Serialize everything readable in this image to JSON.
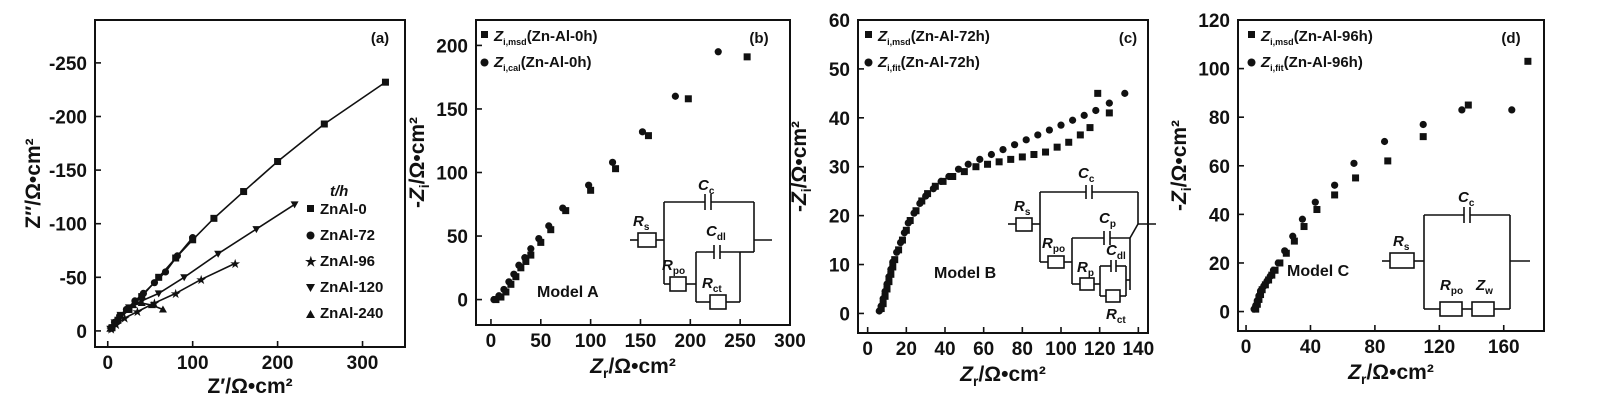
{
  "chart_data": [
    {
      "type": "line",
      "panel_label": "(a)",
      "xlabel": "Z′/Ω•cm²",
      "ylabel": "Z″/Ω•cm²",
      "xlim": [
        -15,
        350
      ],
      "ylim": [
        15,
        -290
      ],
      "xticks": [
        "0",
        "100",
        "200",
        "300"
      ],
      "xtick_values": [
        0,
        100,
        200,
        300
      ],
      "yticks": [
        "0",
        "-50",
        "-100",
        "-150",
        "-200",
        "-250"
      ],
      "ytick_values": [
        0,
        -50,
        -100,
        -150,
        -200,
        -250
      ],
      "legend_title": "t/h",
      "series": [
        {
          "name": "ZnAl-0",
          "marker": "square",
          "x": [
            5,
            12,
            25,
            40,
            60,
            80,
            100,
            125,
            160,
            200,
            255,
            327
          ],
          "y": [
            -3,
            -10,
            -20,
            -32,
            -50,
            -68,
            -85,
            -105,
            -130,
            -158,
            -193,
            -232
          ]
        },
        {
          "name": "ZnAl-72",
          "marker": "circle",
          "x": [
            4,
            8,
            14,
            22,
            32,
            42,
            55,
            68,
            82,
            100
          ],
          "y": [
            -3,
            -8,
            -14,
            -20,
            -28,
            -35,
            -45,
            -55,
            -70,
            -87
          ]
        },
        {
          "name": "ZnAl-96",
          "marker": "star",
          "x": [
            4,
            10,
            20,
            35,
            55,
            80,
            110,
            150
          ],
          "y": [
            -2,
            -6,
            -12,
            -18,
            -26,
            -35,
            -48,
            -63
          ]
        },
        {
          "name": "ZnAl-120",
          "marker": "triangle-down",
          "x": [
            3,
            8,
            15,
            25,
            40,
            60,
            90,
            130,
            175,
            220
          ],
          "y": [
            -2,
            -8,
            -15,
            -22,
            -28,
            -35,
            -50,
            -72,
            -95,
            -118
          ]
        },
        {
          "name": "ZnAl-240",
          "marker": "triangle-up",
          "x": [
            3,
            8,
            15,
            22,
            30,
            40,
            52,
            65
          ],
          "y": [
            -2,
            -8,
            -14,
            -20,
            -24,
            -26,
            -24,
            -20
          ]
        }
      ]
    },
    {
      "type": "scatter",
      "panel_label": "(b)",
      "xlabel": "Zr/Ω•cm²",
      "ylabel": "-Zi/Ω•cm²",
      "xlim": [
        -15,
        300
      ],
      "ylim": [
        -20,
        220
      ],
      "xticks": [
        "0",
        "50",
        "100",
        "150",
        "200",
        "250",
        "300"
      ],
      "xtick_values": [
        0,
        50,
        100,
        150,
        200,
        250,
        300
      ],
      "yticks": [
        "0",
        "50",
        "100",
        "150",
        "200"
      ],
      "ytick_values": [
        0,
        50,
        100,
        150,
        200
      ],
      "model": "Model A",
      "series": [
        {
          "name_main": "Z",
          "name_sub": "i,msd",
          "name_rest": "(Zn-Al-0h)",
          "marker": "square",
          "x": [
            5,
            10,
            15,
            20,
            25,
            30,
            35,
            40,
            50,
            60,
            75,
            100,
            125,
            158,
            198,
            257
          ],
          "y": [
            0,
            2,
            6,
            12,
            18,
            25,
            30,
            35,
            45,
            55,
            70,
            86,
            103,
            129,
            158,
            191
          ]
        },
        {
          "name_main": "Z",
          "name_sub": "i,cal",
          "name_rest": "(Zn-Al-0h)",
          "marker": "circle",
          "x": [
            3,
            8,
            13,
            18,
            23,
            28,
            34,
            40,
            48,
            58,
            72,
            98,
            122,
            152,
            185,
            228
          ],
          "y": [
            0,
            3,
            8,
            14,
            20,
            27,
            33,
            40,
            48,
            58,
            72,
            90,
            108,
            132,
            160,
            195
          ]
        }
      ]
    },
    {
      "type": "scatter",
      "panel_label": "(c)",
      "xlabel": "Zr/Ω•cm²",
      "ylabel": "-Zi/Ω•cm²",
      "xlim": [
        -5,
        145
      ],
      "ylim": [
        -4,
        60
      ],
      "xticks": [
        "0",
        "20",
        "40",
        "60",
        "80",
        "100",
        "120",
        "140"
      ],
      "xtick_values": [
        0,
        20,
        40,
        60,
        80,
        100,
        120,
        140
      ],
      "yticks": [
        "0",
        "10",
        "20",
        "30",
        "40",
        "50",
        "60"
      ],
      "ytick_values": [
        0,
        10,
        20,
        30,
        40,
        50,
        60
      ],
      "model": "Model B",
      "series": [
        {
          "name_main": "Z",
          "name_sub": "i,msd",
          "name_rest": "(Zn-Al-72h)",
          "marker": "square",
          "x": [
            7,
            8,
            9,
            10,
            11,
            12,
            13,
            14,
            16,
            18,
            20,
            22,
            25,
            28,
            31,
            35,
            39,
            44,
            50,
            56,
            62,
            68,
            74,
            80,
            86,
            92,
            98,
            104,
            110,
            115,
            119,
            125
          ],
          "y": [
            1,
            2,
            3.5,
            5,
            6.5,
            8,
            9.5,
            11,
            13,
            15,
            17,
            19,
            21,
            23,
            24.5,
            26,
            27,
            28,
            29,
            30,
            30.5,
            31,
            31.5,
            32,
            32.5,
            33,
            34,
            35,
            36.5,
            38,
            45,
            41
          ]
        },
        {
          "name_main": "Z",
          "name_sub": "i,fit",
          "name_rest": "(Zn-Al-72h)",
          "marker": "circle",
          "x": [
            6,
            7,
            8,
            9,
            10,
            11,
            12,
            13,
            15,
            17,
            19,
            21,
            24,
            27,
            30,
            34,
            38,
            42,
            47,
            52,
            58,
            64,
            70,
            76,
            82,
            88,
            94,
            100,
            106,
            112,
            118,
            125,
            133
          ],
          "y": [
            0.5,
            1.5,
            3,
            4.5,
            6,
            7.5,
            9,
            10.5,
            12.5,
            14.5,
            16.5,
            18.5,
            20.5,
            22.5,
            24,
            25.5,
            27,
            28,
            29.5,
            30.5,
            31.5,
            32.5,
            33.5,
            34.5,
            35.5,
            36.5,
            37.5,
            38.5,
            39.5,
            40.5,
            41.5,
            43,
            45
          ]
        }
      ]
    },
    {
      "type": "scatter",
      "panel_label": "(d)",
      "xlabel": "Zr/Ω•cm²",
      "ylabel": "-Zi/Ω•cm²",
      "xlim": [
        -5,
        185
      ],
      "ylim": [
        -8,
        120
      ],
      "xticks": [
        "0",
        "40",
        "80",
        "120",
        "160"
      ],
      "xtick_values": [
        0,
        40,
        80,
        120,
        160
      ],
      "yticks": [
        "0",
        "20",
        "40",
        "60",
        "80",
        "100",
        "120"
      ],
      "ytick_values": [
        0,
        20,
        40,
        60,
        80,
        100,
        120
      ],
      "model": "Model C",
      "series": [
        {
          "name_main": "Z",
          "name_sub": "i,msd",
          "name_rest": "(Zn-Al-96h)",
          "marker": "square",
          "x": [
            6,
            7,
            8,
            9,
            10,
            12,
            14,
            16,
            18,
            21,
            25,
            30,
            36,
            44,
            55,
            68,
            88,
            110,
            138,
            175
          ],
          "y": [
            1,
            3,
            5,
            7,
            9,
            11,
            13,
            15,
            17,
            20,
            24,
            29,
            35,
            42,
            48,
            55,
            62,
            72,
            85,
            103
          ]
        },
        {
          "name_main": "Z",
          "name_sub": "i,fit",
          "name_rest": "(Zn-Al-96h)",
          "marker": "circle",
          "x": [
            5,
            6,
            7,
            8,
            9,
            11,
            13,
            15,
            17,
            20,
            24,
            29,
            35,
            43,
            55,
            67,
            86,
            110,
            134,
            165
          ],
          "y": [
            1,
            2.5,
            4.5,
            6.5,
            8.5,
            10.5,
            12.5,
            14.5,
            17,
            20,
            25,
            31,
            38,
            45,
            52,
            61,
            70,
            77,
            83,
            83
          ]
        }
      ]
    }
  ],
  "circuits": {
    "a": {
      "rs": "R",
      "rs_sub": "s",
      "cc": "C",
      "cc_sub": "c",
      "cdl": "C",
      "cdl_sub": "dl",
      "rpo": "R",
      "rpo_sub": "po",
      "rct": "R",
      "rct_sub": "ct"
    },
    "b": {
      "rs": "R",
      "rs_sub": "s",
      "cc": "C",
      "cc_sub": "c",
      "cp": "C",
      "cp_sub": "p",
      "cdl": "C",
      "cdl_sub": "dl",
      "rpo": "R",
      "rpo_sub": "po",
      "rp": "R",
      "rp_sub": "p",
      "rct": "R",
      "rct_sub": "ct"
    },
    "c": {
      "rs": "R",
      "rs_sub": "s",
      "cc": "C",
      "cc_sub": "c",
      "rpo": "R",
      "rpo_sub": "po",
      "zw": "Z",
      "zw_sub": "w"
    }
  }
}
